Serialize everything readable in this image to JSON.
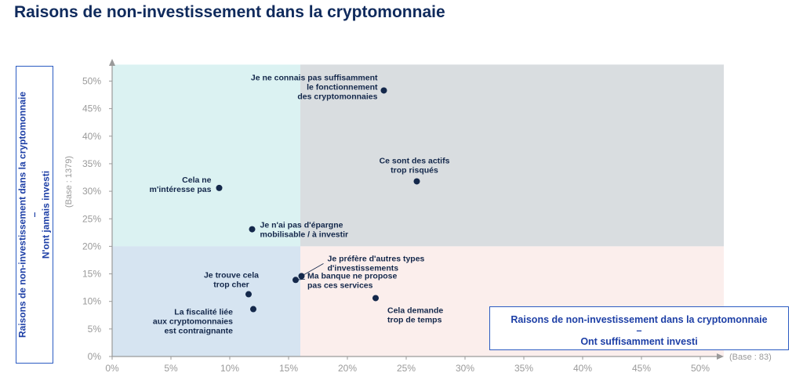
{
  "title": "Raisons de non-investissement dans la cryptomonnaie",
  "y_axis": {
    "line1": "Raisons de non-investissement dans la cryptomonnaie",
    "line2": "–",
    "line3": "N'ont jamais investi",
    "base": "(Base : 1379)"
  },
  "x_axis": {
    "line1": "Raisons de non-investissement dans la cryptomonnaie",
    "line2": "–",
    "line3": "Ont suffisamment investi",
    "base": "(Base : 83)"
  },
  "colors": {
    "point": "#14284b",
    "q_top_left": "#dbf2f2",
    "q_top_right": "#d9dde0",
    "q_bottom_left": "#d6e4f1",
    "q_bottom_right": "#fbeeec",
    "axis": "#9a9a9a",
    "box_border": "#2b5bc2"
  },
  "chart_data": {
    "type": "scatter",
    "xlim": [
      0,
      52
    ],
    "ylim": [
      0,
      53
    ],
    "x_ticks": [
      "0%",
      "5%",
      "10%",
      "15%",
      "20%",
      "25%",
      "30%",
      "35%",
      "40%",
      "45%",
      "50%"
    ],
    "y_ticks": [
      "0%",
      "5%",
      "10%",
      "15%",
      "20%",
      "25%",
      "30%",
      "35%",
      "40%",
      "45%",
      "50%"
    ],
    "quadrant_split": {
      "x": 16,
      "y": 20
    },
    "grid": false,
    "legend": "none",
    "points": [
      {
        "x": 23.1,
        "y": 48.3,
        "lines": [
          "Je ne connais pas suffisamment",
          "le fonctionnement",
          "des cryptomonnaies"
        ]
      },
      {
        "x": 25.9,
        "y": 31.8,
        "lines": [
          "Ce sont des actifs",
          "trop risqués"
        ]
      },
      {
        "x": 9.1,
        "y": 30.6,
        "lines": [
          "Cela ne",
          "m'intéresse pas"
        ]
      },
      {
        "x": 11.9,
        "y": 23.1,
        "lines": [
          "Je n'ai pas d'épargne",
          "mobilisable / à investir"
        ]
      },
      {
        "x": 16.1,
        "y": 14.6,
        "lines": [
          "Je préfère d'autres types",
          "d'investissements"
        ]
      },
      {
        "x": 15.6,
        "y": 13.9,
        "lines": [
          "Ma banque ne propose",
          "pas ces services"
        ]
      },
      {
        "x": 22.4,
        "y": 10.6,
        "lines": [
          "Cela demande",
          "trop de temps"
        ]
      },
      {
        "x": 11.6,
        "y": 11.3,
        "lines": [
          "Je trouve cela",
          "trop cher"
        ]
      },
      {
        "x": 12.0,
        "y": 8.6,
        "lines": [
          "La fiscalité liée",
          "aux cryptomonnaies",
          "est contraignante"
        ]
      }
    ]
  }
}
